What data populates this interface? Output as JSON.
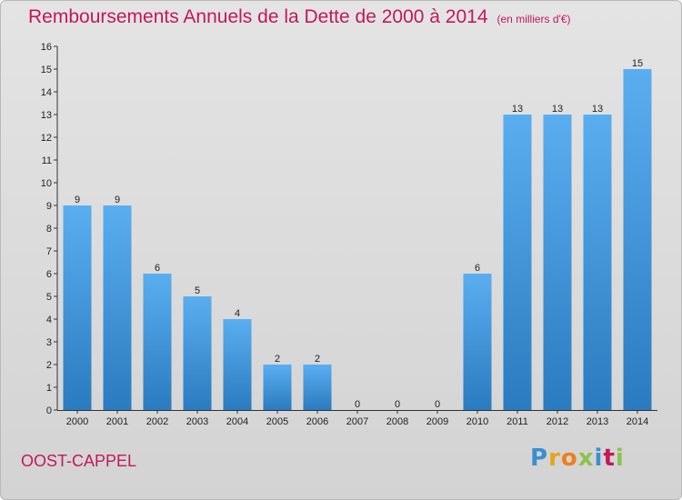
{
  "header": {
    "title": "Remboursements Annuels de la Dette de 2000 à 2014",
    "subtitle": "(en milliers d'€)"
  },
  "footer": {
    "commune": "OOST-CAPPEL",
    "logo": [
      "P",
      "r",
      "o",
      "x",
      "i",
      "t",
      "i"
    ]
  },
  "colors": {
    "bar_light": "#5aaef0",
    "bar_dark": "#2a7bbf",
    "accent": "#c2185b"
  },
  "chart_data": {
    "type": "bar",
    "title": "Remboursements Annuels de la Dette de 2000 à 2014",
    "xlabel": "",
    "ylabel": "",
    "ylim": [
      0,
      16
    ],
    "yticks": [
      0,
      1,
      2,
      3,
      4,
      5,
      6,
      7,
      8,
      9,
      10,
      11,
      12,
      13,
      14,
      15,
      16
    ],
    "grid": false,
    "categories": [
      "2000",
      "2001",
      "2002",
      "2003",
      "2004",
      "2005",
      "2006",
      "2007",
      "2008",
      "2009",
      "2010",
      "2011",
      "2012",
      "2013",
      "2014"
    ],
    "values": [
      9,
      9,
      6,
      5,
      4,
      2,
      2,
      0,
      0,
      0,
      6,
      13,
      13,
      13,
      15
    ]
  }
}
